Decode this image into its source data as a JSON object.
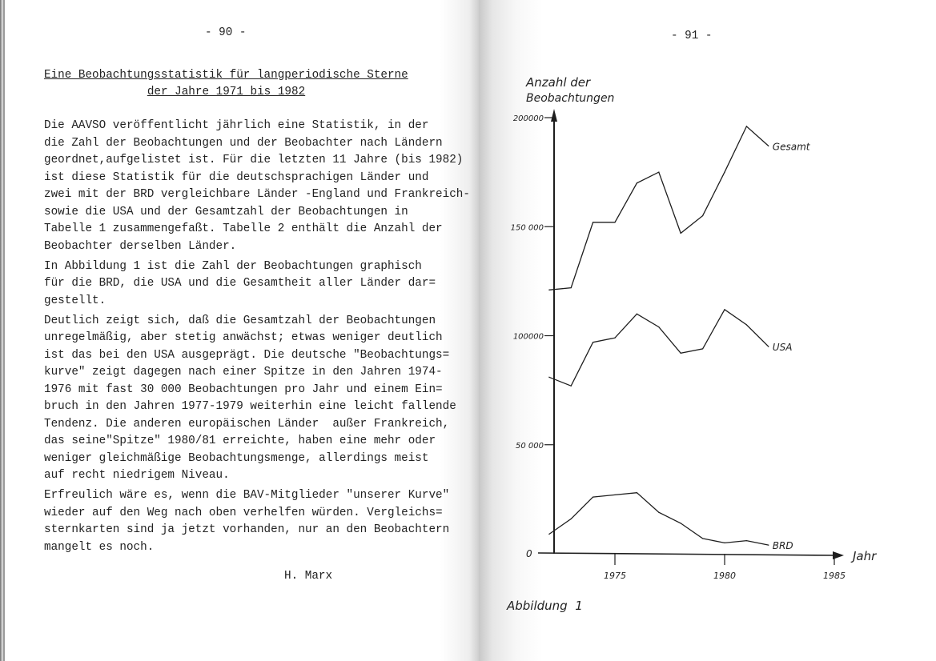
{
  "left_page": {
    "page_number": "- 90 -",
    "title_lines": [
      "Eine Beobachtungsstatistik für langperiodische Sterne",
      "der Jahre 1971 bis 1982"
    ],
    "paragraphs": [
      [
        "Die AAVSO veröffentlicht jährlich eine Statistik, in der",
        "die Zahl der Beobachtungen und der Beobachter nach Ländern",
        "geordnet,aufgelistet ist. Für die letzten 11 Jahre (bis 1982)",
        "ist diese Statistik für die deutschsprachigen Länder und",
        "zwei mit der BRD vergleichbare Länder -England und Frankreich-",
        "sowie die USA und der Gesamtzahl der Beobachtungen in",
        "Tabelle 1 zusammengefaßt. Tabelle 2 enthält die Anzahl der",
        "Beobachter derselben Länder."
      ],
      [
        "In Abbildung 1 ist die Zahl der Beobachtungen graphisch",
        "für die BRD, die USA und die Gesamtheit aller Länder dar=",
        "gestellt."
      ],
      [
        "Deutlich zeigt sich, daß die Gesamtzahl der Beobachtungen",
        "unregelmäßig, aber stetig anwächst; etwas weniger deutlich",
        "ist das bei den USA ausgeprägt. Die deutsche \"Beobachtungs=",
        "kurve\" zeigt dagegen nach einer Spitze in den Jahren 1974-",
        "1976 mit fast 30 000 Beobachtungen pro Jahr und einem Ein=",
        "bruch in den Jahren 1977-1979 weiterhin eine leicht fallende",
        "Tendenz. Die anderen europäischen Länder  außer Frankreich,",
        "das seine\"Spitze\" 1980/81 erreichte, haben eine mehr oder",
        "weniger gleichmäßige Beobachtungsmenge, allerdings meist",
        "auf recht niedrigem Niveau."
      ],
      [
        "Erfreulich wäre es, wenn die BAV-Mitglieder \"unserer Kurve\"",
        "wieder auf den Weg nach oben verhelfen würden. Vergleichs=",
        "sternkarten sind ja jetzt vorhanden, nur an den Beobachtern",
        "mangelt es noch."
      ]
    ],
    "signature": "H. Marx"
  },
  "right_page": {
    "page_number": "- 91 -",
    "caption": "Abbildung  1"
  },
  "chart_data": {
    "type": "line",
    "title": "",
    "ylabel": "Anzahl der Beobachtungen",
    "ylabel_lines": [
      "Anzahl der",
      "Beobachtungen"
    ],
    "xlabel": "Jahr",
    "x": [
      1972,
      1973,
      1974,
      1975,
      1976,
      1977,
      1978,
      1979,
      1980,
      1981,
      1982
    ],
    "xlim": [
      1972,
      1985
    ],
    "ylim": [
      0,
      200000
    ],
    "x_ticks": [
      1975,
      1980,
      1985
    ],
    "x_tick_labels": [
      "1975",
      "1980",
      "1985"
    ],
    "y_ticks": [
      0,
      50000,
      100000,
      150000,
      200000
    ],
    "y_tick_labels": [
      "0",
      "50 000",
      "100000",
      "150 000",
      "200000"
    ],
    "grid": false,
    "legend": "labels at line ends",
    "series": [
      {
        "name": "Gesamt",
        "values": [
          121000,
          122000,
          152000,
          152000,
          170000,
          175000,
          147000,
          155000,
          175000,
          196000,
          187000
        ]
      },
      {
        "name": "USA",
        "values": [
          81000,
          77000,
          97000,
          99000,
          110000,
          104000,
          92000,
          94000,
          112000,
          105000,
          95000
        ]
      },
      {
        "name": "BRD",
        "values": [
          9000,
          16000,
          26000,
          27000,
          28000,
          19000,
          14000,
          7000,
          5000,
          6000,
          4000
        ]
      }
    ],
    "line_color": "#1e1e1e"
  }
}
